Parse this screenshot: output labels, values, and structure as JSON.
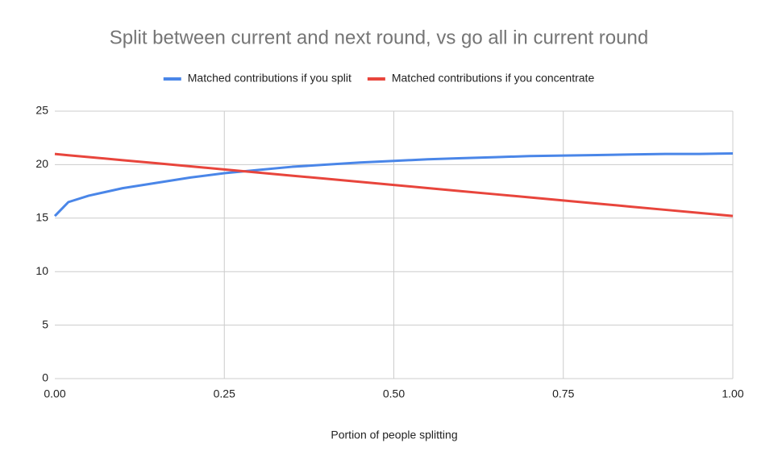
{
  "chart_data": {
    "type": "line",
    "title": "Split between current and next round, vs go all in current round",
    "x_label": "Portion of people splitting",
    "x": [
      0,
      0.02,
      0.05,
      0.1,
      0.15,
      0.2,
      0.25,
      0.3,
      0.35,
      0.4,
      0.45,
      0.5,
      0.55,
      0.6,
      0.65,
      0.7,
      0.75,
      0.8,
      0.85,
      0.9,
      0.95,
      1.0
    ],
    "series": [
      {
        "name": "Matched contributions if you split",
        "color": "#4a86e8",
        "values": [
          15.2,
          16.5,
          17.1,
          17.8,
          18.3,
          18.8,
          19.2,
          19.5,
          19.8,
          20.0,
          20.2,
          20.35,
          20.5,
          20.6,
          20.7,
          20.8,
          20.85,
          20.9,
          20.95,
          21.0,
          21.0,
          21.05
        ]
      },
      {
        "name": "Matched contributions if you concentrate",
        "color": "#e8453c",
        "values": [
          21.0,
          20.88,
          20.71,
          20.42,
          20.13,
          19.84,
          19.55,
          19.26,
          18.97,
          18.68,
          18.39,
          18.1,
          17.81,
          17.52,
          17.23,
          16.94,
          16.65,
          16.36,
          16.07,
          15.78,
          15.49,
          15.2
        ]
      }
    ],
    "xlim": [
      0,
      1
    ],
    "xticks": [
      {
        "value": 0,
        "label": "0.00"
      },
      {
        "value": 0.25,
        "label": "0.25"
      },
      {
        "value": 0.5,
        "label": "0.50"
      },
      {
        "value": 0.75,
        "label": "0.75"
      },
      {
        "value": 1,
        "label": "1.00"
      }
    ],
    "ylim": [
      0,
      25
    ],
    "yticks": [
      0,
      5,
      10,
      15,
      20,
      25
    ],
    "grid": true,
    "legend": "top"
  }
}
